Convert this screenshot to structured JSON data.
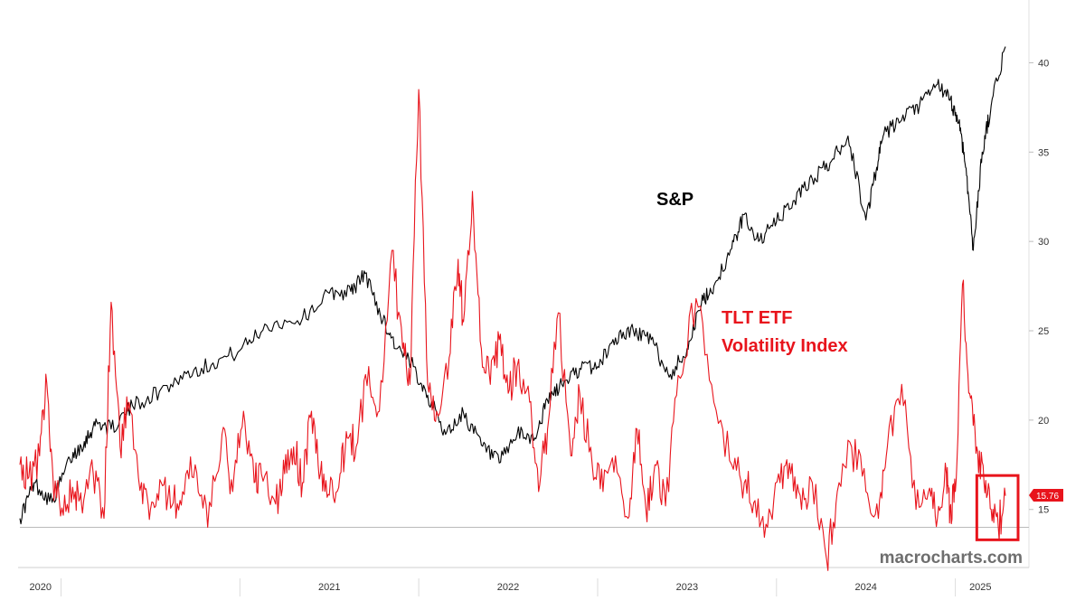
{
  "chart_data": {
    "type": "line",
    "title": "",
    "xlabel": "",
    "ylabel": "",
    "x_axis": {
      "type": "time",
      "range": [
        2019.77,
        2025.28
      ],
      "years": [
        "2020",
        "2021",
        "2022",
        "2023",
        "2024",
        "2025"
      ]
    },
    "y_axis": {
      "position": "right",
      "range": [
        11.75,
        42.5
      ],
      "ticks": [
        "15",
        "20",
        "25",
        "30",
        "35",
        "40"
      ]
    },
    "grid": false,
    "series": [
      {
        "name": "S&P",
        "label": "S&P",
        "color": "#000000",
        "axis": "unscaled-overlay",
        "x": [
          2019.77,
          2019.85,
          2019.95,
          2020.05,
          2020.13,
          2020.2,
          2020.28,
          2020.4,
          2020.55,
          2020.7,
          2020.85,
          2021.0,
          2021.15,
          2021.35,
          2021.5,
          2021.62,
          2021.7,
          2021.8,
          2021.88,
          2021.97,
          2022.05,
          2022.15,
          2022.25,
          2022.35,
          2022.45,
          2022.55,
          2022.65,
          2022.72,
          2022.8,
          2022.9,
          2023.0,
          2023.1,
          2023.2,
          2023.3,
          2023.4,
          2023.5,
          2023.58,
          2023.65,
          2023.75,
          2023.82,
          2023.9,
          2024.0,
          2024.1,
          2024.2,
          2024.3,
          2024.4,
          2024.5,
          2024.55,
          2024.6,
          2024.7,
          2024.8,
          2024.9,
          2024.97,
          2025.02,
          2025.06,
          2025.1,
          2025.15,
          2025.2,
          2025.28
        ],
        "values": [
          14.5,
          16.5,
          15.4,
          17.8,
          18.8,
          19.9,
          19.5,
          20.8,
          21.6,
          22.6,
          23.2,
          23.9,
          25.3,
          25.7,
          27.1,
          27.2,
          28.2,
          25.6,
          24.0,
          23.0,
          21.4,
          19.2,
          20.4,
          18.6,
          17.6,
          19.2,
          19.0,
          21.1,
          22.0,
          22.9,
          23.0,
          24.6,
          25.0,
          24.5,
          22.4,
          24.0,
          26.5,
          27.5,
          29.6,
          31.5,
          30.0,
          31.1,
          32.3,
          33.5,
          34.4,
          35.9,
          31.2,
          33.7,
          36.0,
          36.8,
          37.6,
          38.8,
          37.9,
          36.7,
          34.1,
          29.5,
          35.0,
          37.6,
          40.9
        ]
      },
      {
        "name": "TLT ETF Volatility Index",
        "label_lines": [
          "TLT ETF",
          "Volatility Index"
        ],
        "color": "#e8141c",
        "axis": "right",
        "last_value": "15.76",
        "x": [
          2019.77,
          2019.82,
          2019.88,
          2019.92,
          2019.96,
          2020.02,
          2020.08,
          2020.12,
          2020.18,
          2020.24,
          2020.28,
          2020.33,
          2020.38,
          2020.45,
          2020.5,
          2020.56,
          2020.62,
          2020.68,
          2020.75,
          2020.82,
          2020.9,
          2020.96,
          2021.02,
          2021.08,
          2021.12,
          2021.2,
          2021.25,
          2021.3,
          2021.35,
          2021.4,
          2021.45,
          2021.5,
          2021.56,
          2021.6,
          2021.65,
          2021.72,
          2021.78,
          2021.85,
          2021.91,
          2021.95,
          2022.0,
          2022.05,
          2022.1,
          2022.17,
          2022.22,
          2022.25,
          2022.3,
          2022.35,
          2022.4,
          2022.45,
          2022.5,
          2022.55,
          2022.62,
          2022.67,
          2022.72,
          2022.78,
          2022.85,
          2022.9,
          2022.97,
          2023.03,
          2023.1,
          2023.17,
          2023.22,
          2023.27,
          2023.32,
          2023.38,
          2023.45,
          2023.55,
          2023.65,
          2023.75,
          2023.82,
          2023.88,
          2023.95,
          2024.02,
          2024.08,
          2024.14,
          2024.2,
          2024.28,
          2024.34,
          2024.42,
          2024.5,
          2024.57,
          2024.62,
          2024.7,
          2024.78,
          2024.85,
          2024.9,
          2024.95,
          2024.97,
          2025.0,
          2025.04,
          2025.08,
          2025.12,
          2025.16,
          2025.2,
          2025.24,
          2025.28
        ],
        "values": [
          17.5,
          16.8,
          18.0,
          22.1,
          15.5,
          15.8,
          16.0,
          14.8,
          17.0,
          14.5,
          26.6,
          18.5,
          21.0,
          16.5,
          15.0,
          16.5,
          15.2,
          16.0,
          17.5,
          14.0,
          19.2,
          16.0,
          20.5,
          16.5,
          17.0,
          15.3,
          17.0,
          18.5,
          16.5,
          20.5,
          17.0,
          15.8,
          17.0,
          19.0,
          18.5,
          23.0,
          20.5,
          29.5,
          24.0,
          22.0,
          38.5,
          22.0,
          20.5,
          23.5,
          29.0,
          25.5,
          32.8,
          24.0,
          22.0,
          24.5,
          21.5,
          23.0,
          21.0,
          16.0,
          19.5,
          26.0,
          18.0,
          21.5,
          17.5,
          16.0,
          18.0,
          14.5,
          19.5,
          15.0,
          17.5,
          15.2,
          22.5,
          26.8,
          21.0,
          17.5,
          16.5,
          15.5,
          14.0,
          16.5,
          17.0,
          15.0,
          16.5,
          12.2,
          16.0,
          18.5,
          16.0,
          14.5,
          18.5,
          22.0,
          15.0,
          16.0,
          14.5,
          17.0,
          15.0,
          16.0,
          27.6,
          21.5,
          18.5,
          16.5,
          15.0,
          14.0,
          15.76
        ]
      }
    ],
    "annotations": {
      "watermark": "macrocharts.com",
      "highlight_box": {
        "x_range": [
          2025.12,
          2025.28
        ],
        "y_range": [
          13.3,
          16.9
        ],
        "color": "#e8141c"
      },
      "reference_line": {
        "y": 14.0,
        "color": "#bbbbbb"
      }
    }
  }
}
